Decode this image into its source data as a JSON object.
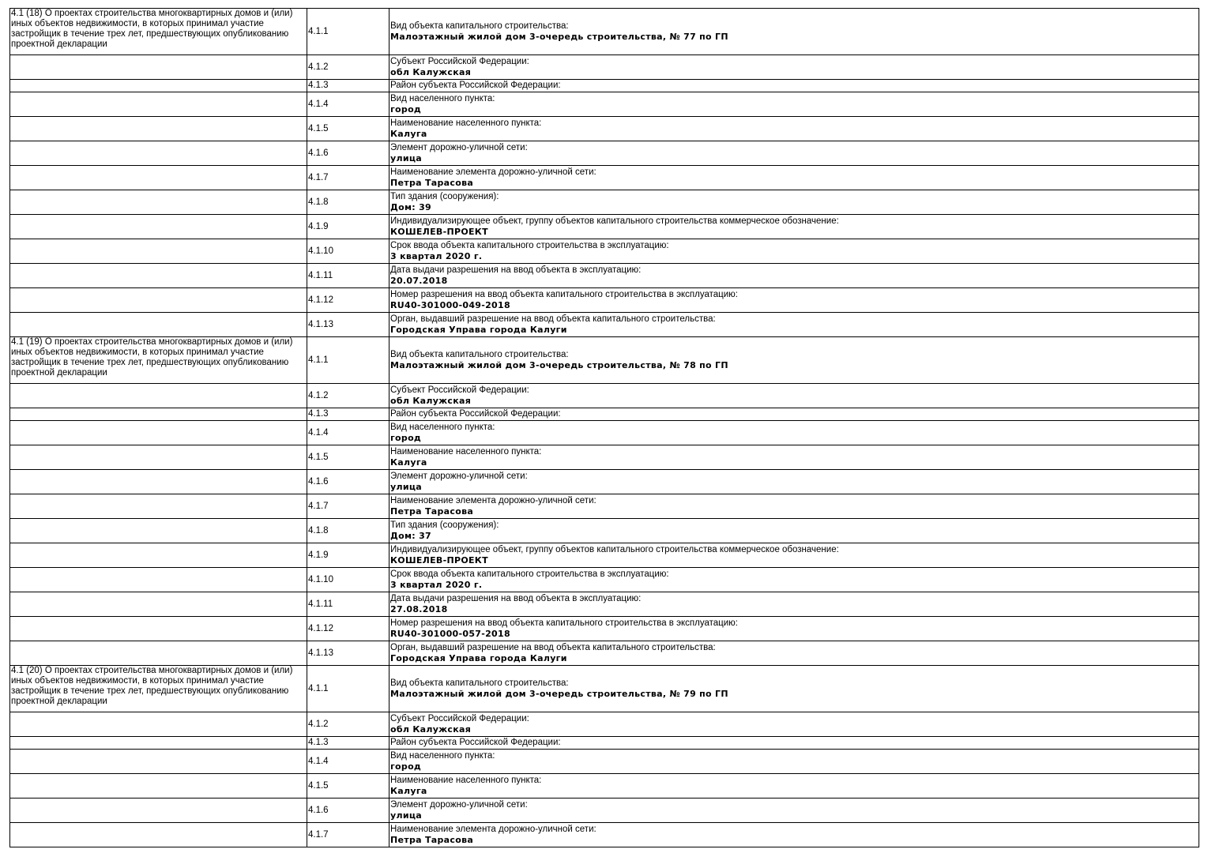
{
  "blocks": [
    {
      "title": "4.1 (18) О проектах строительства многоквартирных домов и (или) иных объектов недвижимости, в которых принимал участие застройщик в течение трех лет, предшествующих опубликованию проектной декларации",
      "rows": [
        {
          "code": "4.1.1",
          "label": "Вид объекта капитального строительства:",
          "value": "Малоэтажный жилой дом 3-очередь строительства, № 77 по ГП"
        },
        {
          "code": "4.1.2",
          "label": "Субъект Российской Федерации:",
          "value": "обл Калужская"
        },
        {
          "code": "4.1.3",
          "label": "Район субъекта Российской Федерации:",
          "value": ""
        },
        {
          "code": "4.1.4",
          "label": "Вид населенного пункта:",
          "value": "город"
        },
        {
          "code": "4.1.5",
          "label": "Наименование населенного пункта:",
          "value": "Калуга"
        },
        {
          "code": "4.1.6",
          "label": "Элемент дорожно-уличной сети:",
          "value": "улица"
        },
        {
          "code": "4.1.7",
          "label": "Наименование элемента дорожно-уличной сети:",
          "value": "Петра Тарасова"
        },
        {
          "code": "4.1.8",
          "label": "Тип здания (сооружения):",
          "value": "Дом: 39"
        },
        {
          "code": "4.1.9",
          "label": "Индивидуализирующее объект, группу объектов капитального строительства коммерческое обозначение:",
          "value": "КОШЕЛЕВ-ПРОЕКТ"
        },
        {
          "code": "4.1.10",
          "label": "Срок ввода объекта капитального строительства в эксплуатацию:",
          "value": "3 квартал 2020 г."
        },
        {
          "code": "4.1.11",
          "label": "Дата выдачи разрешения на ввод объекта в эксплуатацию:",
          "value": "20.07.2018"
        },
        {
          "code": "4.1.12",
          "label": "Номер разрешения на ввод объекта капитального строительства в эксплуатацию:",
          "value": "RU40-301000-049-2018"
        },
        {
          "code": "4.1.13",
          "label": "Орган, выдавший разрешение на ввод объекта капитального строительства:",
          "value": "Городская Управа города Калуги"
        }
      ]
    },
    {
      "title": "4.1 (19) О проектах строительства многоквартирных домов и (или) иных объектов недвижимости, в которых принимал участие застройщик в течение трех лет, предшествующих опубликованию проектной декларации",
      "rows": [
        {
          "code": "4.1.1",
          "label": "Вид объекта капитального строительства:",
          "value": "Малоэтажный жилой дом 3-очередь строительства, № 78 по ГП"
        },
        {
          "code": "4.1.2",
          "label": "Субъект Российской Федерации:",
          "value": "обл Калужская"
        },
        {
          "code": "4.1.3",
          "label": "Район субъекта Российской Федерации:",
          "value": ""
        },
        {
          "code": "4.1.4",
          "label": "Вид населенного пункта:",
          "value": "город"
        },
        {
          "code": "4.1.5",
          "label": "Наименование населенного пункта:",
          "value": "Калуга"
        },
        {
          "code": "4.1.6",
          "label": "Элемент дорожно-уличной сети:",
          "value": "улица"
        },
        {
          "code": "4.1.7",
          "label": "Наименование элемента дорожно-уличной сети:",
          "value": "Петра Тарасова"
        },
        {
          "code": "4.1.8",
          "label": "Тип здания (сооружения):",
          "value": "Дом: 37"
        },
        {
          "code": "4.1.9",
          "label": "Индивидуализирующее объект, группу объектов капитального строительства коммерческое обозначение:",
          "value": "КОШЕЛЕВ-ПРОЕКТ"
        },
        {
          "code": "4.1.10",
          "label": "Срок ввода объекта капитального строительства в эксплуатацию:",
          "value": "3 квартал 2020 г."
        },
        {
          "code": "4.1.11",
          "label": "Дата выдачи разрешения на ввод объекта в эксплуатацию:",
          "value": "27.08.2018"
        },
        {
          "code": "4.1.12",
          "label": "Номер разрешения на ввод объекта капитального строительства в эксплуатацию:",
          "value": "RU40-301000-057-2018"
        },
        {
          "code": "4.1.13",
          "label": "Орган, выдавший разрешение на ввод объекта капитального строительства:",
          "value": "Городская Управа города Калуги"
        }
      ]
    },
    {
      "title": "4.1 (20) О проектах строительства многоквартирных домов и (или) иных объектов недвижимости, в которых принимал участие застройщик в течение трех лет, предшествующих опубликованию проектной декларации",
      "rows": [
        {
          "code": "4.1.1",
          "label": "Вид объекта капитального строительства:",
          "value": "Малоэтажный жилой дом 3-очередь строительства, № 79 по ГП"
        },
        {
          "code": "4.1.2",
          "label": "Субъект Российской Федерации:",
          "value": "обл Калужская"
        },
        {
          "code": "4.1.3",
          "label": "Район субъекта Российской Федерации:",
          "value": ""
        },
        {
          "code": "4.1.4",
          "label": "Вид населенного пункта:",
          "value": "город"
        },
        {
          "code": "4.1.5",
          "label": "Наименование населенного пункта:",
          "value": "Калуга"
        },
        {
          "code": "4.1.6",
          "label": "Элемент дорожно-уличной сети:",
          "value": "улица"
        },
        {
          "code": "4.1.7",
          "label": "Наименование элемента дорожно-уличной сети:",
          "value": "Петра Тарасова"
        }
      ]
    }
  ]
}
